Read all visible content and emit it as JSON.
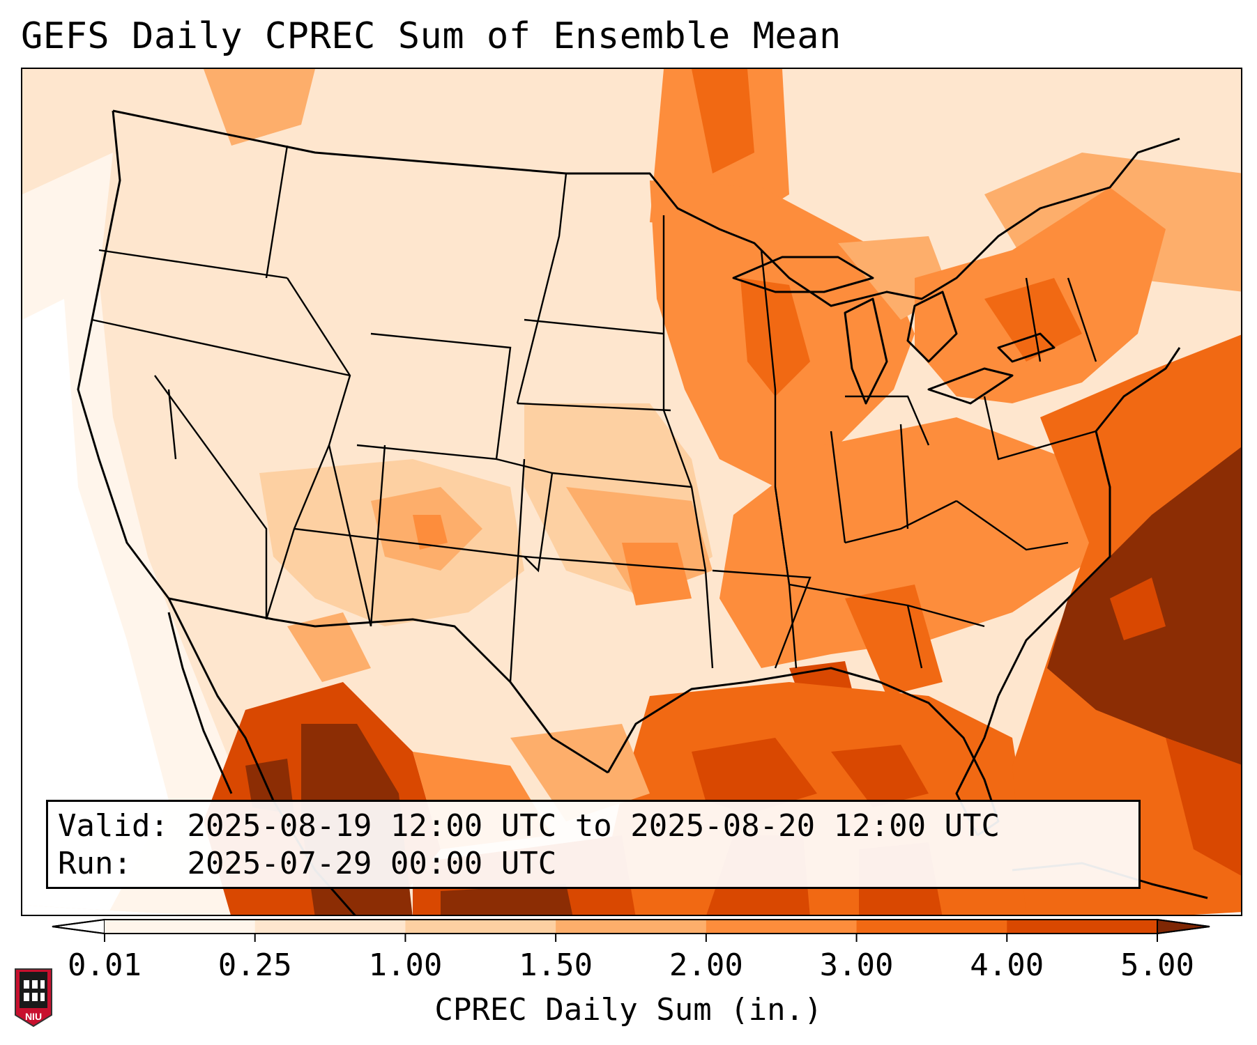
{
  "title": "GEFS Daily CPREC Sum of Ensemble Mean",
  "info": {
    "valid_label": "Valid:",
    "valid_value": "2025-08-19 12:00 UTC to 2025-08-20 12:00 UTC",
    "run_label": "Run:",
    "run_value": "2025-07-29 00:00 UTC"
  },
  "colorbar": {
    "label": "CPREC Daily Sum (in.)",
    "ticks": [
      "0.01",
      "0.25",
      "1.00",
      "1.50",
      "2.00",
      "3.00",
      "4.00",
      "5.00"
    ],
    "colors": [
      "#fff5eb",
      "#fee6ce",
      "#fdd0a2",
      "#fdae6b",
      "#fd8d3c",
      "#f16913",
      "#d94801",
      "#8c2d04"
    ],
    "under_color": "#ffffff",
    "over_color": "#7f2704"
  },
  "logo": {
    "text": "NIU",
    "colors": {
      "shield": "#c8102e",
      "tower": "#1a1a1a"
    }
  }
}
